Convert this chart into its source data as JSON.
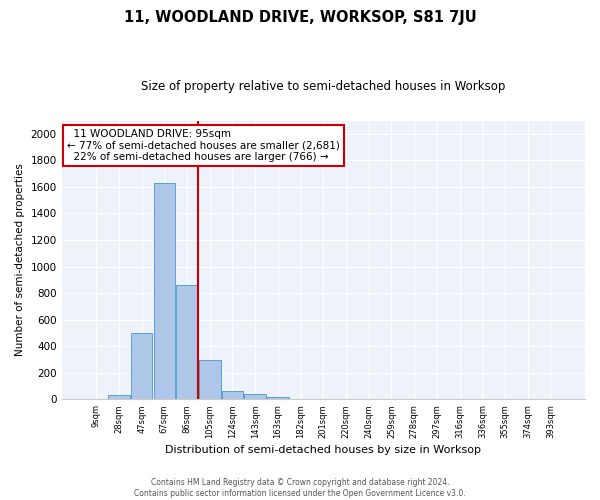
{
  "title": "11, WOODLAND DRIVE, WORKSOP, S81 7JU",
  "subtitle": "Size of property relative to semi-detached houses in Worksop",
  "xlabel": "Distribution of semi-detached houses by size in Worksop",
  "ylabel": "Number of semi-detached properties",
  "property_label": "11 WOODLAND DRIVE: 95sqm",
  "pct_smaller": 77,
  "n_smaller": 2681,
  "pct_larger": 22,
  "n_larger": 766,
  "bin_labels": [
    "9sqm",
    "28sqm",
    "47sqm",
    "67sqm",
    "86sqm",
    "105sqm",
    "124sqm",
    "143sqm",
    "163sqm",
    "182sqm",
    "201sqm",
    "220sqm",
    "240sqm",
    "259sqm",
    "278sqm",
    "297sqm",
    "316sqm",
    "336sqm",
    "355sqm",
    "374sqm",
    "393sqm"
  ],
  "bar_values": [
    0,
    30,
    500,
    1630,
    860,
    295,
    60,
    40,
    20,
    5,
    0,
    0,
    0,
    0,
    0,
    0,
    0,
    0,
    0,
    0,
    0
  ],
  "bar_color": "#aec6e8",
  "bar_edge_color": "#5a9fd4",
  "vline_x": 4.5,
  "vline_color": "#cc0000",
  "annotation_box_color": "#cc0000",
  "ylim": [
    0,
    2100
  ],
  "yticks": [
    0,
    200,
    400,
    600,
    800,
    1000,
    1200,
    1400,
    1600,
    1800,
    2000
  ],
  "bg_color": "#eef2fa",
  "footer1": "Contains HM Land Registry data © Crown copyright and database right 2024.",
  "footer2": "Contains public sector information licensed under the Open Government Licence v3.0."
}
